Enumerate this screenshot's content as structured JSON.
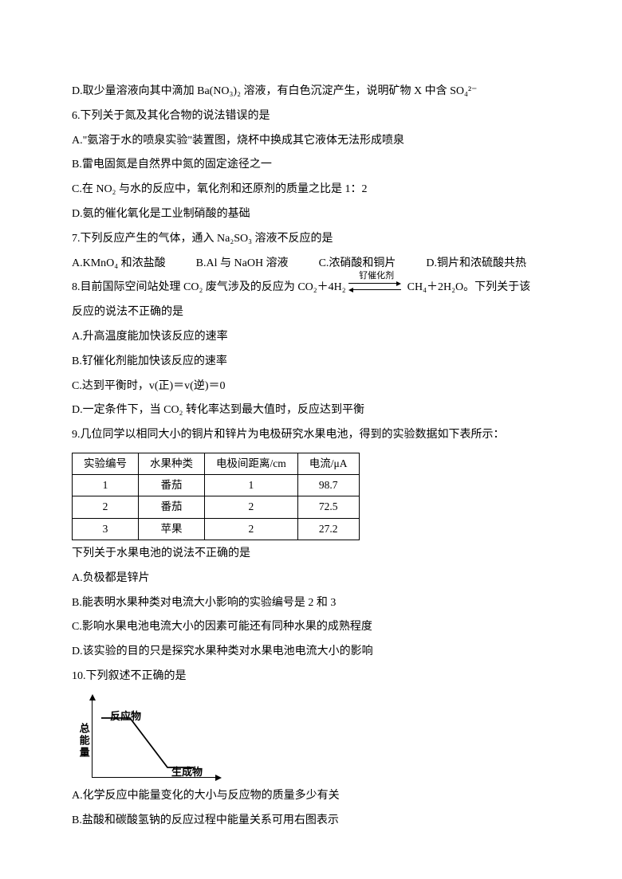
{
  "q5d": "D.取少量溶液向其中滴加 Ba(NO₃)₂ 溶液，有白色沉淀产生，说明矿物 X 中含 SO₄²⁻",
  "q6": {
    "stem": "6.下列关于氮及其化合物的说法错误的是",
    "a": "A.\"氨溶于水的喷泉实验\"装置图，烧杯中换成其它液体无法形成喷泉",
    "b": "B.雷电固氮是自然界中氮的固定途径之一",
    "c": "C.在 NO₂ 与水的反应中，氧化剂和还原剂的质量之比是 1：2",
    "d": "D.氨的催化氧化是工业制硝酸的基础"
  },
  "q7": {
    "stem": "7.下列反应产生的气体，通入 Na₂SO₃ 溶液不反应的是",
    "a": "A.KMnO₄ 和浓盐酸",
    "b": "B.Al 与 NaOH 溶液",
    "c": "C.浓硝酸和铜片",
    "d": "D.铜片和浓硫酸共热"
  },
  "q8": {
    "pre": "8.目前国际空间站处理 CO₂ 废气涉及的反应为 CO₂＋4H₂",
    "catalyst": "钌催化剂",
    "post": "CH₄＋2H₂O。下列关于该",
    "stem2": "反应的说法不正确的是",
    "a": "A.升高温度能加快该反应的速率",
    "b": "B.钌催化剂能加快该反应的速率",
    "c": "C.达到平衡时，v(正)＝v(逆)＝0",
    "d": "D.一定条件下，当 CO₂ 转化率达到最大值时，反应达到平衡"
  },
  "q9": {
    "stem": "9.几位同学以相同大小的铜片和锌片为电极研究水果电池，得到的实验数据如下表所示：",
    "headers": [
      "实验编号",
      "水果种类",
      "电极间距离/cm",
      "电流/μA"
    ],
    "rows": [
      [
        "1",
        "番茄",
        "1",
        "98.7"
      ],
      [
        "2",
        "番茄",
        "2",
        "72.5"
      ],
      [
        "3",
        "苹果",
        "2",
        "27.2"
      ]
    ],
    "mid": "下列关于水果电池的说法不正确的是",
    "a": "A.负极都是锌片",
    "b": "B.能表明水果种类对电流大小影响的实验编号是 2 和 3",
    "c": "C.影响水果电池电流大小的因素可能还有同种水果的成熟程度",
    "d": "D.该实验的目的只是探究水果种类对水果电池电流大小的影响"
  },
  "q10": {
    "stem": "10.下列叙述不正确的是",
    "ylabel": "总能量",
    "reactant": "反应物",
    "product": "生成物",
    "a": "A.化学反应中能量变化的大小与反应物的质量多少有关",
    "b": "B.盐酸和碳酸氢钠的反应过程中能量关系可用右图表示"
  }
}
